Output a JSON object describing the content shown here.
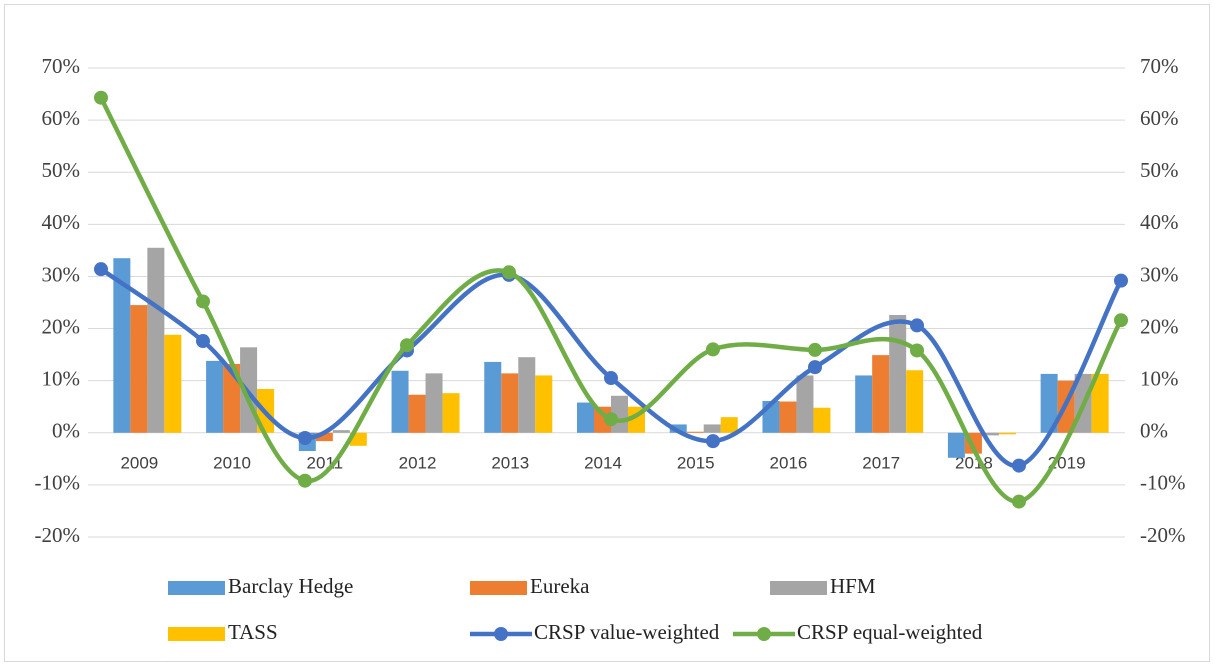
{
  "chart_data": {
    "type": "bar",
    "categories": [
      "2009",
      "2010",
      "2011",
      "2012",
      "2013",
      "2014",
      "2015",
      "2016",
      "2017",
      "2018",
      "2019"
    ],
    "series": [
      {
        "name": "Barclay Hedge",
        "color": "#5b9bd5",
        "type": "bar",
        "values": [
          33.5,
          13.8,
          -3.5,
          11.9,
          13.6,
          5.8,
          1.6,
          6.1,
          11.0,
          -4.8,
          11.3
        ]
      },
      {
        "name": "Eureka",
        "color": "#ed7d31",
        "type": "bar",
        "values": [
          24.5,
          13.2,
          -1.6,
          7.3,
          11.4,
          5.0,
          0.2,
          6.0,
          14.9,
          -4.0,
          10.0
        ]
      },
      {
        "name": "HFM",
        "color": "#a5a5a5",
        "type": "bar",
        "values": [
          35.5,
          16.4,
          0.5,
          11.4,
          14.5,
          7.1,
          1.6,
          11.0,
          22.6,
          -0.5,
          11.3
        ]
      },
      {
        "name": "TASS",
        "color": "#ffc000",
        "type": "bar",
        "values": [
          18.8,
          8.4,
          -2.5,
          7.6,
          11.0,
          5.0,
          3.0,
          4.8,
          12.0,
          -0.3,
          11.3
        ]
      },
      {
        "name": "CRSP value-weighted",
        "color": "#4472c4",
        "type": "line",
        "axis": "y2",
        "values": [
          31.4,
          17.6,
          -1.0,
          15.8,
          30.3,
          10.5,
          -1.6,
          12.6,
          20.6,
          -6.3,
          29.2
        ]
      },
      {
        "name": "CRSP equal-weighted",
        "color": "#70ad47",
        "type": "line",
        "axis": "y2",
        "values": [
          64.3,
          25.2,
          -9.2,
          16.8,
          30.8,
          2.6,
          16.0,
          15.9,
          15.8,
          -13.2,
          21.6
        ]
      }
    ],
    "ylim": [
      -20,
      70
    ],
    "yticks": [
      {
        "value": -20,
        "label": "-20%"
      },
      {
        "value": -10,
        "label": "-10%"
      },
      {
        "value": 0,
        "label": "0%"
      },
      {
        "value": 10,
        "label": "10%"
      },
      {
        "value": 20,
        "label": "20%"
      },
      {
        "value": 30,
        "label": "30%"
      },
      {
        "value": 40,
        "label": "40%"
      },
      {
        "value": 50,
        "label": "50%"
      },
      {
        "value": 60,
        "label": "60%"
      },
      {
        "value": 70,
        "label": "70%"
      }
    ],
    "y2lim": [
      -20,
      70
    ],
    "y2ticks": [
      {
        "value": -20,
        "label": "-20%"
      },
      {
        "value": -10,
        "label": "-10%"
      },
      {
        "value": 0,
        "label": "0%"
      },
      {
        "value": 10,
        "label": "10%"
      },
      {
        "value": 20,
        "label": "20%"
      },
      {
        "value": 30,
        "label": "30%"
      },
      {
        "value": 40,
        "label": "40%"
      },
      {
        "value": 50,
        "label": "50%"
      },
      {
        "value": 60,
        "label": "60%"
      },
      {
        "value": 70,
        "label": "70%"
      }
    ],
    "grid": true,
    "legend": "bottom"
  }
}
